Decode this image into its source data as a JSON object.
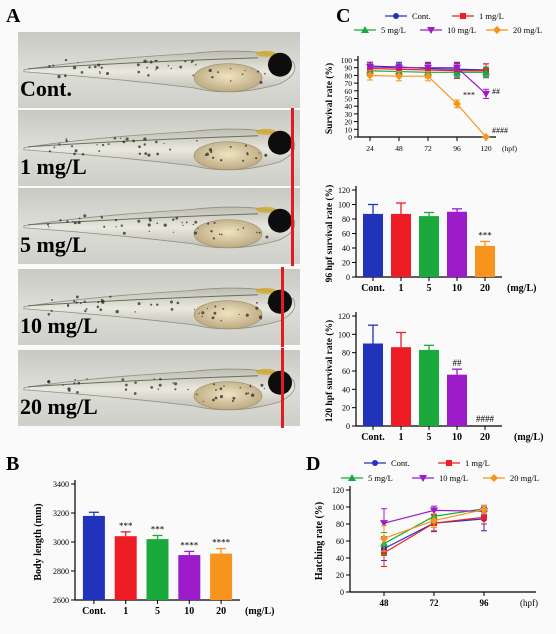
{
  "panel_labels": {
    "a": "A",
    "b": "B",
    "c": "C",
    "d": "D"
  },
  "fish_labels": [
    "Cont.",
    "1 mg/L",
    "5 mg/L",
    "10 mg/L",
    "20 mg/L"
  ],
  "colors": {
    "cont": "#2233bb",
    "c1": "#ee1c24",
    "c5": "#1aaa3c",
    "c10": "#9b1cc8",
    "c20": "#f7941d",
    "marker": "#e01b24"
  },
  "chart_data": [
    {
      "id": "survival-time",
      "type": "line",
      "ylabel": "Survival rate (%)",
      "x_unit": "(hpf)",
      "x": [
        24,
        48,
        72,
        96,
        120
      ],
      "ylim": [
        0,
        100
      ],
      "yticks": [
        0,
        10,
        20,
        30,
        40,
        50,
        60,
        70,
        80,
        90,
        100
      ],
      "series": [
        {
          "name": "Cont.",
          "values": [
            92,
            91,
            89,
            88,
            87
          ],
          "err": [
            5,
            6,
            8,
            9,
            8
          ]
        },
        {
          "name": "1 mg/L",
          "values": [
            89,
            88,
            87,
            86,
            86
          ],
          "err": [
            6,
            7,
            9,
            10,
            9
          ]
        },
        {
          "name": "5 mg/L",
          "values": [
            86,
            85,
            84,
            84,
            84
          ],
          "err": [
            5,
            6,
            7,
            7,
            7
          ]
        },
        {
          "name": "10 mg/L",
          "values": [
            91,
            90,
            90,
            90,
            56
          ],
          "err": [
            6,
            5,
            5,
            5,
            6
          ]
        },
        {
          "name": "20 mg/L",
          "values": [
            80,
            79,
            79,
            43,
            0
          ],
          "err": [
            6,
            6,
            6,
            5,
            0
          ]
        }
      ],
      "annotations": [
        {
          "x": 96,
          "y": 51,
          "text": "***"
        },
        {
          "x": 120,
          "y": 56,
          "text": "##"
        },
        {
          "x": 120,
          "y": 5,
          "text": "####"
        }
      ]
    },
    {
      "id": "survival-96",
      "type": "bar",
      "ylabel": "96 hpf survival rate (%)",
      "x_unit": "(mg/L)",
      "categories": [
        "Cont.",
        "1",
        "5",
        "10",
        "20"
      ],
      "values": [
        87,
        87,
        84,
        90,
        43
      ],
      "err": [
        13,
        15,
        5,
        4,
        6
      ],
      "ylim": [
        0,
        120
      ],
      "yticks": [
        0,
        20,
        40,
        60,
        80,
        100,
        120
      ],
      "annotations": [
        {
          "index": 4,
          "text": "***"
        }
      ]
    },
    {
      "id": "survival-120",
      "type": "bar",
      "ylabel": "120 hpf survival rate (%)",
      "x_unit": "(mg/L)",
      "categories": [
        "Cont.",
        "1",
        "5",
        "10",
        "20"
      ],
      "values": [
        90,
        86,
        83,
        56,
        0
      ],
      "err": [
        20,
        16,
        5,
        6,
        0
      ],
      "ylim": [
        0,
        120
      ],
      "yticks": [
        0,
        20,
        40,
        60,
        80,
        100,
        120
      ],
      "annotations": [
        {
          "index": 3,
          "text": "##"
        },
        {
          "index": 4,
          "text": "####"
        }
      ]
    },
    {
      "id": "body-length",
      "type": "bar",
      "ylabel": "Body length (mm)",
      "x_unit": "(mg/L)",
      "categories": [
        "Cont.",
        "1",
        "5",
        "10",
        "20"
      ],
      "values": [
        3180,
        3040,
        3020,
        2910,
        2920
      ],
      "err": [
        25,
        30,
        25,
        25,
        35
      ],
      "ylim": [
        2600,
        3400
      ],
      "yticks": [
        2600,
        2800,
        3000,
        3200,
        3400
      ],
      "annotations": [
        {
          "index": 1,
          "text": "***"
        },
        {
          "index": 2,
          "text": "***"
        },
        {
          "index": 3,
          "text": "****"
        },
        {
          "index": 4,
          "text": "****"
        }
      ]
    },
    {
      "id": "hatching",
      "type": "line",
      "ylabel": "Hatching rate (%)",
      "x_unit": "(hpf)",
      "x": [
        48,
        72,
        96
      ],
      "ylim": [
        0,
        120
      ],
      "yticks": [
        0,
        20,
        40,
        60,
        80,
        100,
        120
      ],
      "series": [
        {
          "name": "Cont.",
          "values": [
            51,
            81,
            86
          ],
          "err": [
            14,
            10,
            14
          ]
        },
        {
          "name": "1 mg/L",
          "values": [
            46,
            81,
            88
          ],
          "err": [
            16,
            9,
            8
          ]
        },
        {
          "name": "5 mg/L",
          "values": [
            57,
            89,
            98
          ],
          "err": [
            13,
            8,
            4
          ]
        },
        {
          "name": "10 mg/L",
          "values": [
            81,
            96,
            95
          ],
          "err": [
            17,
            5,
            4
          ]
        },
        {
          "name": "20 mg/L",
          "values": [
            63,
            84,
            97
          ],
          "err": [
            15,
            8,
            5
          ]
        }
      ]
    }
  ]
}
